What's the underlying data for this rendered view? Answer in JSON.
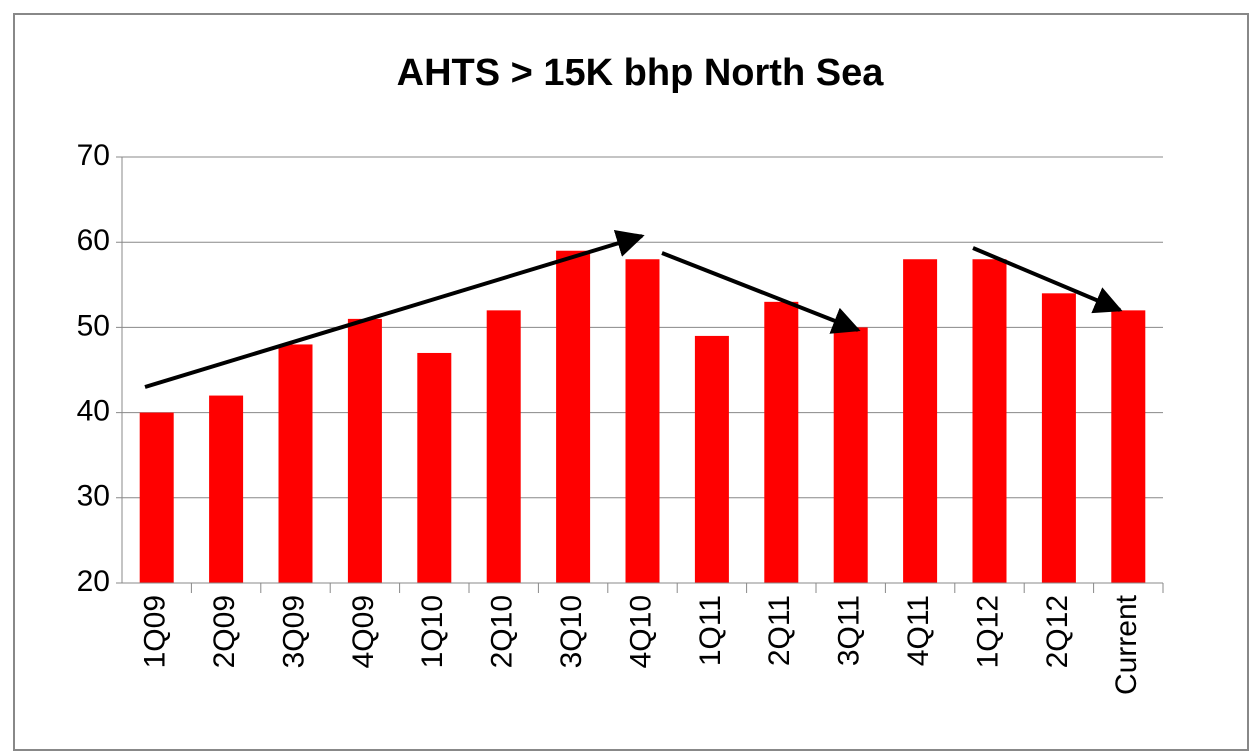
{
  "chart_data": {
    "type": "bar",
    "title": "AHTS > 15K bhp North Sea",
    "categories": [
      "1Q09",
      "2Q09",
      "3Q09",
      "4Q09",
      "1Q10",
      "2Q10",
      "3Q10",
      "4Q10",
      "1Q11",
      "2Q11",
      "3Q11",
      "4Q11",
      "1Q12",
      "2Q12",
      "Current"
    ],
    "values": [
      40,
      42,
      48,
      51,
      47,
      52,
      59,
      58,
      49,
      53,
      50,
      58,
      58,
      54,
      52
    ],
    "color": "#ff0000",
    "ylim": [
      20,
      70
    ],
    "yticks": [
      20,
      30,
      40,
      50,
      60,
      70
    ],
    "grid": true
  }
}
